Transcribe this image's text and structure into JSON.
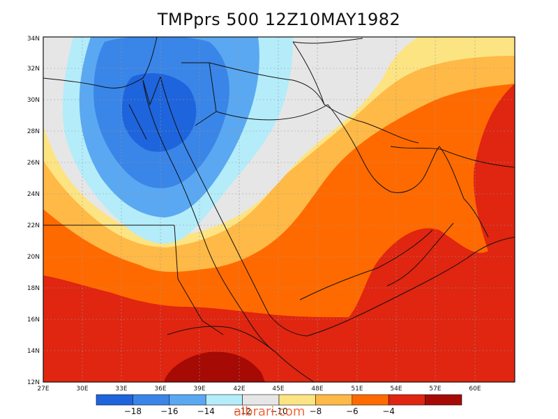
{
  "title": "TMPprs 500 12Z10MAY1982",
  "watermark": "albrari.com",
  "lat_ticks": [
    "12N",
    "14N",
    "16N",
    "18N",
    "20N",
    "22N",
    "24N",
    "26N",
    "28N",
    "30N",
    "32N",
    "34N"
  ],
  "lon_ticks": [
    "27E",
    "30E",
    "33E",
    "36E",
    "39E",
    "42E",
    "45E",
    "48E",
    "51E",
    "54E",
    "57E",
    "60E"
  ],
  "legend": {
    "colors": [
      "#1e64dc",
      "#3a85e8",
      "#5aa8f2",
      "#b4ecfa",
      "#e6e6e6",
      "#fde483",
      "#ffb946",
      "#ff6a00",
      "#e02510",
      "#a50a05"
    ],
    "labels": [
      "-18",
      "-16",
      "-14",
      "-12",
      "-10",
      "-8",
      "-6",
      "-4"
    ]
  }
}
